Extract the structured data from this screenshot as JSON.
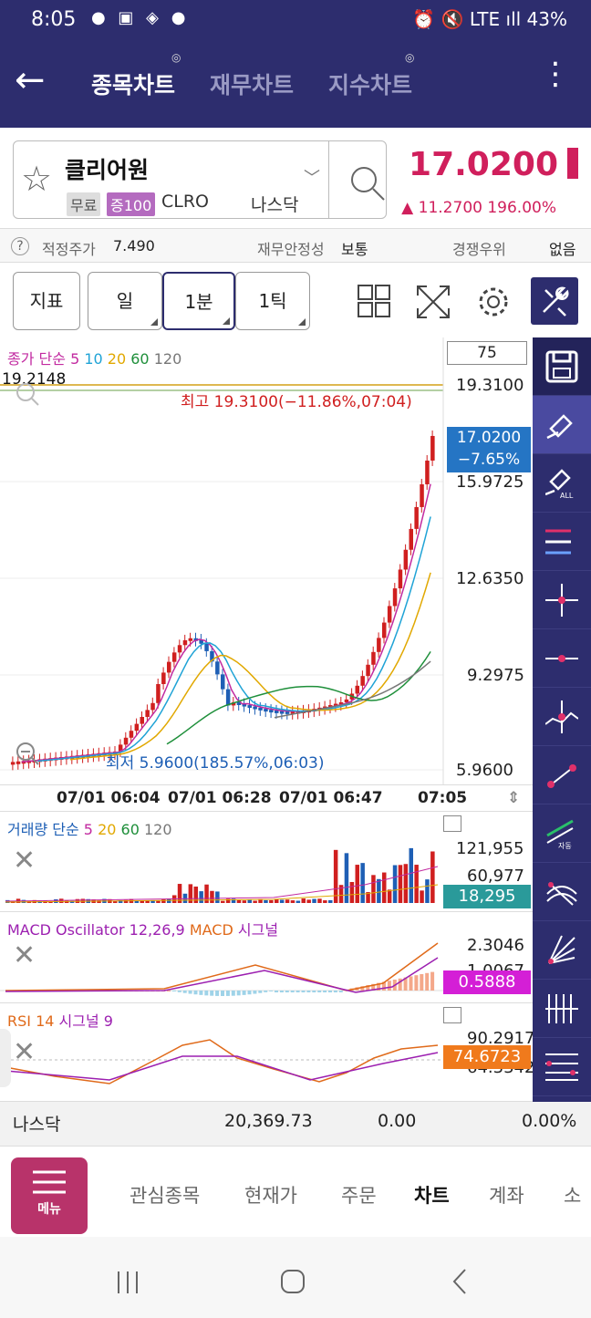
{
  "status": {
    "time": "8:05",
    "notif_icons": "● ▣ ◈ ●",
    "right_icons": "⏰ 🔇 LTE ıll",
    "battery": "43%"
  },
  "header": {
    "tabs": [
      {
        "label": "종목차트",
        "active": true
      },
      {
        "label": "재무차트",
        "active": false
      },
      {
        "label": "지수차트",
        "active": false
      }
    ]
  },
  "stock": {
    "name": "클리어원",
    "tag_free": "무료",
    "tag_margin": "증100",
    "code": "CLRO",
    "market": "나스닥",
    "price": "17.0200",
    "change": "▲ 11.2700  196.00%"
  },
  "info": {
    "fair_label": "적정주가",
    "fair_value": "7.490",
    "stability_label": "재무안정성",
    "stability_value": "보통",
    "compete_label": "경쟁우위",
    "compete_value": "없음"
  },
  "toolbar": {
    "indicator": "지표",
    "day": "일",
    "min": "1분",
    "tick": "1틱"
  },
  "main_chart": {
    "ma_title": "종가 단순",
    "ma_periods": [
      "5",
      "10",
      "20",
      "60",
      "120"
    ],
    "ma_colors": [
      "#c22aa0",
      "#1fa3d6",
      "#e1a800",
      "#1e8f3a",
      "#777777"
    ],
    "count": "75",
    "top_left_value": "19.2148",
    "high_label": "최고 19.3100(−11.86%,07:04)",
    "low_label": "최저 5.9600(185.57%,06:03)",
    "price_tag": "17.0200",
    "pct_tag": "−7.65%",
    "y_ticks": [
      "19.3100",
      "15.9725",
      "12.6350",
      "9.2975",
      "5.9600"
    ],
    "x_labels": [
      "07/01 06:04",
      "07/01 06:28",
      "07/01 06:47",
      "07:05"
    ]
  },
  "volume": {
    "title": "거래량 단순",
    "periods": [
      "5",
      "20",
      "60",
      "120"
    ],
    "ticks": [
      "121,955",
      "60,977"
    ],
    "tag": "18,295"
  },
  "macd": {
    "title_a": "MACD Oscillator 12,26,9",
    "title_b": "MACD",
    "title_c": "시그널",
    "ticks": [
      "2.3046",
      "1.0067"
    ],
    "tag": "0.5888"
  },
  "rsi": {
    "title_a": "RSI 14",
    "title_b": "시그널 9",
    "ticks": [
      "90.2917",
      "64.3342"
    ],
    "tag": "74.6723"
  },
  "index_bar": {
    "name": "나스닥",
    "value": "20,369.73",
    "change": "0.00",
    "pct": "0.00%"
  },
  "nav": {
    "menu": "메뉴",
    "items": [
      {
        "label": "관심종목",
        "active": false
      },
      {
        "label": "현재가",
        "active": false
      },
      {
        "label": "주문",
        "active": false
      },
      {
        "label": "차트",
        "active": true
      },
      {
        "label": "계좌",
        "active": false
      },
      {
        "label": "소",
        "active": false
      }
    ]
  }
}
